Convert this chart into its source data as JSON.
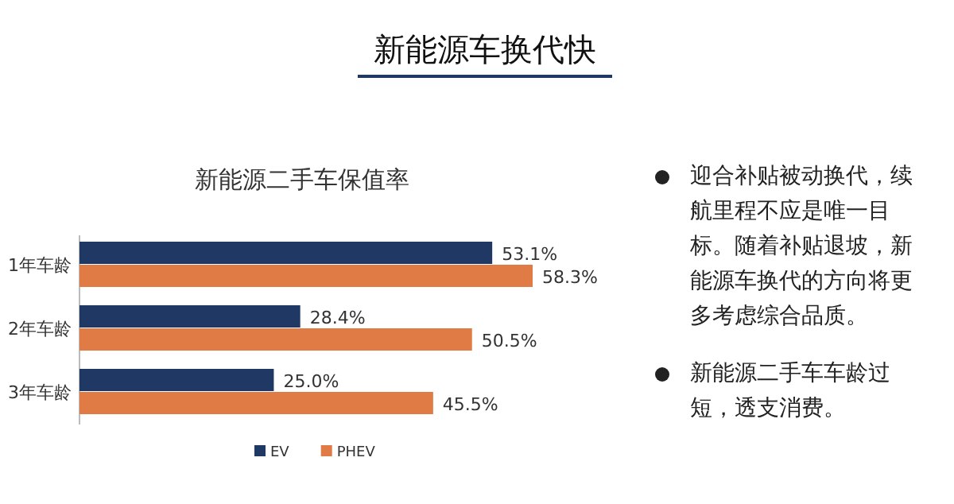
{
  "chart_data": [
    {
      "type": "bar",
      "orientation": "horizontal",
      "title": "新能源车换代快",
      "subtitle": "新能源二手车保值率",
      "categories": [
        "1年车龄",
        "2年车龄",
        "3年车龄"
      ],
      "series": [
        {
          "name": "EV",
          "color": "#1f3864",
          "values": [
            53.1,
            28.4,
            25.0
          ],
          "value_labels": [
            "53.1%",
            "28.4%",
            "25.0%"
          ]
        },
        {
          "name": "PHEV",
          "color": "#e07b45",
          "values": [
            58.3,
            50.5,
            45.5
          ],
          "value_labels": [
            "58.3%",
            "50.5%",
            "45.5%"
          ]
        }
      ],
      "legend": "bottom"
    },
    {
      "type": "other",
      "annotations": [
        "迎合补贴被动换代，续航里程不应是唯一目标。随着补贴退坡，新能源车换代的方向将更多考虑综合品质。",
        "新能源二手车车龄过短，透支消费。"
      ]
    }
  ]
}
